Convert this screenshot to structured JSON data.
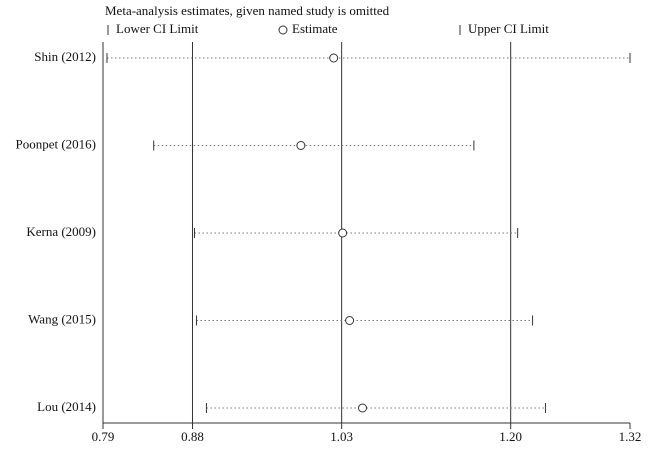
{
  "chart_data": {
    "type": "sensitivity",
    "title": "Meta-analysis estimates, given named study is omitted",
    "categories": [
      "Shin (2012)",
      "Poonpet (2016)",
      "Kerna (2009)",
      "Wang (2015)",
      "Lou (2014)"
    ],
    "series": [
      {
        "name": "Lower CI Limit",
        "values": [
          0.794,
          0.841,
          0.882,
          0.884,
          0.894
        ]
      },
      {
        "name": "Estimate",
        "values": [
          1.022,
          0.989,
          1.031,
          1.038,
          1.051
        ]
      },
      {
        "name": "Upper CI Limit",
        "values": [
          1.32,
          1.163,
          1.207,
          1.222,
          1.235
        ]
      }
    ],
    "reference_lines": [
      0.88,
      1.03,
      1.2
    ],
    "xlim": [
      0.79,
      1.32
    ],
    "xticks": [
      0.79,
      0.88,
      1.03,
      {
        "value": 1.2,
        "label": "1.20"
      },
      1.32
    ]
  }
}
